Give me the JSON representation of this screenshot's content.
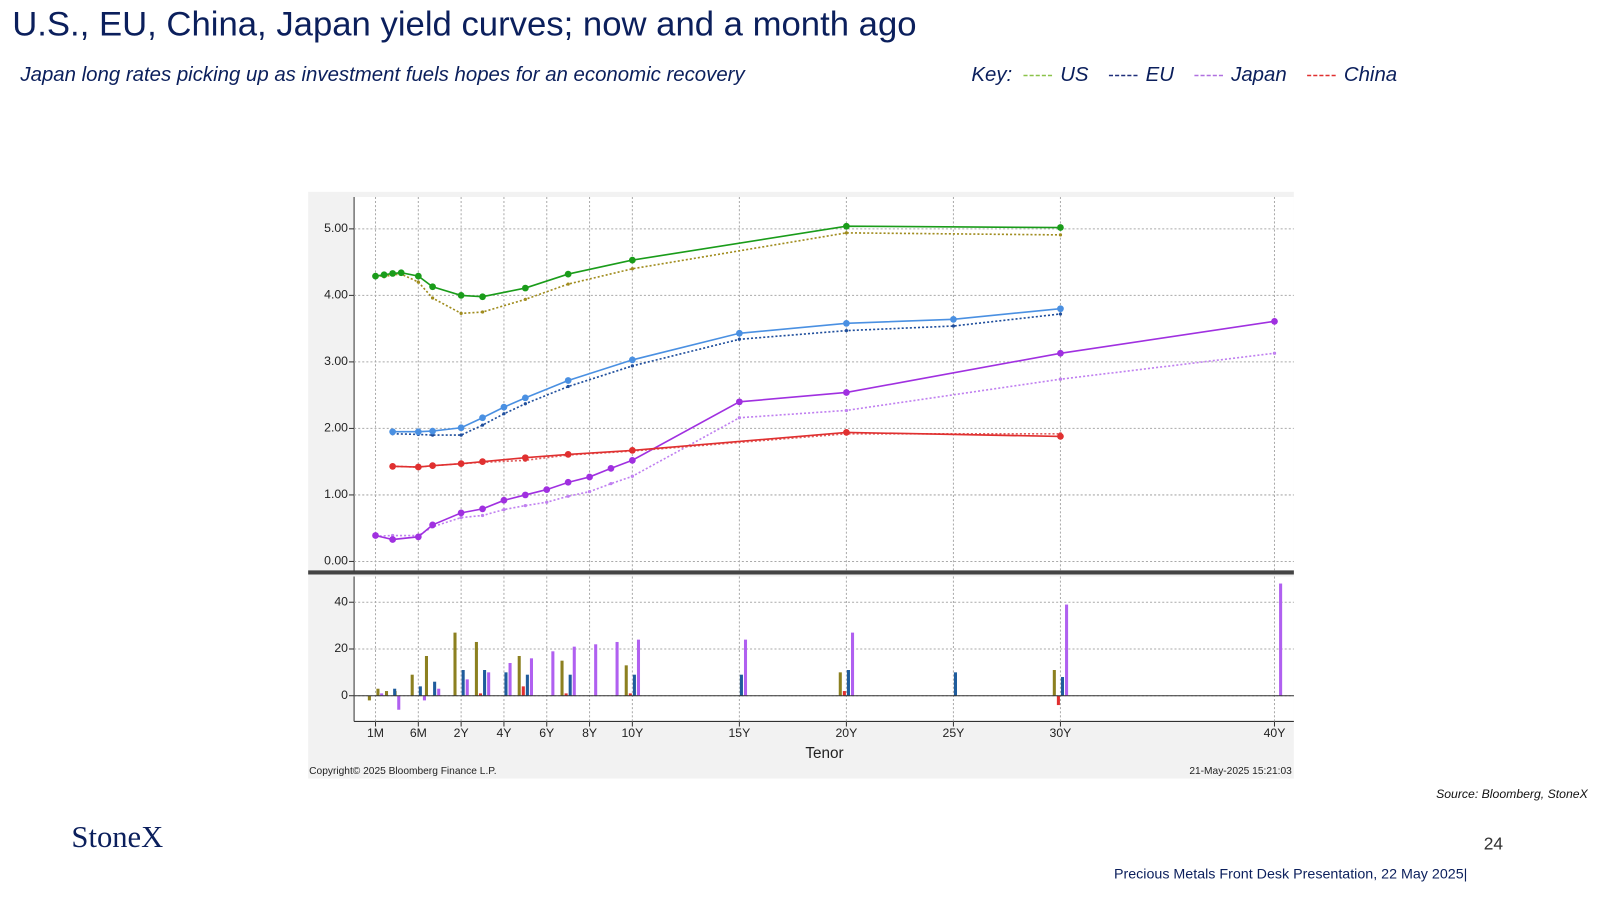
{
  "title": "U.S., EU, China, Japan yield curves; now and a month ago",
  "subtitle": "Japan long rates picking up as investment fuels hopes for an economic  recovery",
  "key_label": "Key:",
  "copyright": "Copyright© 2025 Bloomberg Finance L.P.",
  "timestamp": "21-May-2025 15:21:03",
  "source": "Source: Bloomberg, StoneX",
  "logo": "StoneX",
  "page_number": "24",
  "footer": "Precious Metals Front Desk Presentation, 22 May 2025|",
  "chart_data": [
    {
      "type": "line",
      "ylim": [
        -0.15,
        5.48
      ],
      "yticks": [
        {
          "value": 0,
          "label": "0.00"
        },
        {
          "value": 1,
          "label": "1.00"
        },
        {
          "value": 2,
          "label": "2.00"
        },
        {
          "value": 3,
          "label": "3.00"
        },
        {
          "value": 4,
          "label": "4.00"
        },
        {
          "value": 5,
          "label": "5.00"
        }
      ],
      "grid": true,
      "series": [
        {
          "name": "US",
          "color": "#1a9c1a",
          "month_ago_color": "#a08c1e",
          "key_color": "#8bc34a",
          "x": [
            0.0833,
            0.1667,
            0.25,
            0.3333,
            0.5,
            1,
            2,
            3,
            5,
            7,
            10,
            20,
            30
          ],
          "values": [
            4.29,
            4.31,
            4.33,
            4.34,
            4.29,
            4.13,
            4.0,
            3.98,
            4.11,
            4.32,
            4.53,
            5.04,
            5.02
          ],
          "month_ago": [
            4.31,
            4.28,
            4.31,
            4.32,
            4.2,
            3.96,
            3.73,
            3.75,
            3.94,
            4.17,
            4.4,
            4.94,
            4.91
          ]
        },
        {
          "name": "EU",
          "color": "#4a90e2",
          "month_ago_color": "#1f4e9c",
          "key_color": "#1f2f7a",
          "x": [
            0.25,
            0.5,
            1,
            2,
            3,
            4,
            5,
            7,
            10,
            15,
            20,
            25,
            30
          ],
          "values": [
            1.95,
            1.95,
            1.96,
            2.01,
            2.16,
            2.32,
            2.46,
            2.72,
            3.03,
            3.43,
            3.58,
            3.64,
            3.8
          ],
          "month_ago": [
            1.92,
            1.91,
            1.9,
            1.9,
            2.05,
            2.22,
            2.37,
            2.63,
            2.94,
            3.34,
            3.47,
            3.54,
            3.72
          ]
        },
        {
          "name": "Japan",
          "color": "#a030e0",
          "month_ago_color": "#c080f0",
          "key_color": "#b070e0",
          "x": [
            0.0833,
            0.25,
            0.5,
            1,
            2,
            3,
            4,
            5,
            6,
            7,
            8,
            9,
            10,
            15,
            20,
            30,
            40
          ],
          "values": [
            0.39,
            0.33,
            0.37,
            0.55,
            0.73,
            0.79,
            0.92,
            1.0,
            1.08,
            1.19,
            1.27,
            1.4,
            1.52,
            2.4,
            2.54,
            3.13,
            3.61
          ],
          "month_ago": [
            0.38,
            0.39,
            0.39,
            0.52,
            0.66,
            0.69,
            0.78,
            0.84,
            0.89,
            0.98,
            1.05,
            1.17,
            1.28,
            2.16,
            2.27,
            2.74,
            3.13
          ]
        },
        {
          "name": "China",
          "color": "#e03030",
          "month_ago_color": "#e06060",
          "key_color": "#e03030",
          "x": [
            0.25,
            0.5,
            1,
            2,
            3,
            5,
            7,
            10,
            20,
            30
          ],
          "values": [
            1.43,
            1.42,
            1.44,
            1.47,
            1.5,
            1.56,
            1.61,
            1.67,
            1.94,
            1.88
          ],
          "month_ago": [
            1.43,
            1.42,
            1.44,
            1.47,
            1.49,
            1.52,
            1.6,
            1.66,
            1.92,
            1.92
          ]
        }
      ]
    },
    {
      "type": "bar",
      "xlabel": "Tenor",
      "xticks": [
        {
          "value": 0.0833,
          "label": "1M"
        },
        {
          "value": 0.5,
          "label": "6M"
        },
        {
          "value": 2,
          "label": "2Y"
        },
        {
          "value": 4,
          "label": "4Y"
        },
        {
          "value": 6,
          "label": "6Y"
        },
        {
          "value": 8,
          "label": "8Y"
        },
        {
          "value": 10,
          "label": "10Y"
        },
        {
          "value": 15,
          "label": "15Y"
        },
        {
          "value": 20,
          "label": "20Y"
        },
        {
          "value": 25,
          "label": "25Y"
        },
        {
          "value": 30,
          "label": "30Y"
        },
        {
          "value": 40,
          "label": "40Y"
        }
      ],
      "ylim": [
        -11,
        51
      ],
      "yticks": [
        0,
        20,
        40
      ],
      "grid": true,
      "series": [
        {
          "color": "#8c8020",
          "x": [
            0.0833,
            0.1667,
            0.25,
            0.3333,
            0.5,
            1,
            2,
            3,
            5,
            7,
            10,
            20,
            30
          ],
          "values": [
            -2,
            3,
            2,
            2,
            9,
            17,
            27,
            23,
            17,
            15,
            13,
            10,
            11
          ]
        },
        {
          "color": "#e03030",
          "x": [
            0.25,
            0.5,
            1,
            2,
            3,
            5,
            7,
            10,
            20,
            30
          ],
          "values": [
            0,
            0,
            0,
            0,
            1,
            4,
            1,
            1,
            2,
            -4
          ]
        },
        {
          "color": "#1f5c9c",
          "x": [
            0.25,
            0.5,
            1,
            2,
            3,
            4,
            5,
            7,
            10,
            15,
            20,
            25,
            30
          ],
          "values": [
            3,
            4,
            6,
            11,
            11,
            10,
            9,
            9,
            9,
            9,
            11,
            10,
            8
          ]
        },
        {
          "color": "#b060f0",
          "x": [
            0.0833,
            0.25,
            0.5,
            1,
            2,
            3,
            4,
            5,
            6,
            7,
            8,
            9,
            10,
            15,
            20,
            30,
            40
          ],
          "values": [
            1,
            -6,
            -2,
            3,
            7,
            10,
            14,
            16,
            19,
            21,
            22,
            23,
            24,
            24,
            27,
            39,
            48
          ]
        }
      ]
    }
  ]
}
